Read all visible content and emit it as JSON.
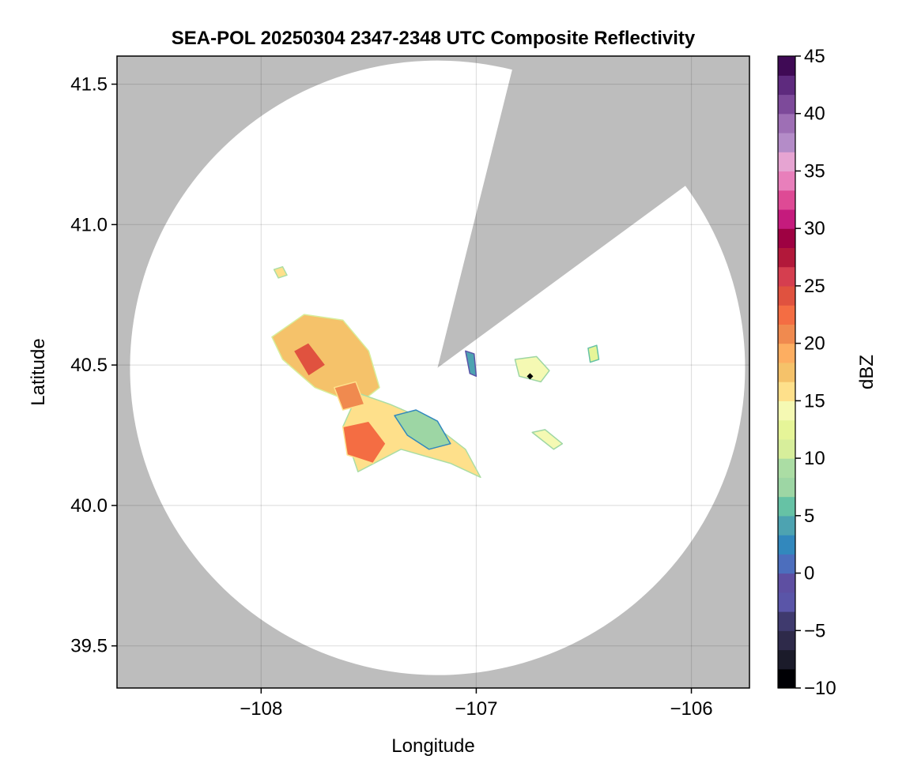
{
  "chart_data": {
    "type": "heatmap",
    "title": "SEA-POL 20250304 2347-2348 UTC Composite Reflectivity",
    "xlabel": "Longitude",
    "ylabel": "Latitude",
    "xlim": [
      -108.67,
      -105.73
    ],
    "ylim": [
      39.35,
      41.6
    ],
    "xticks": [
      -108,
      -107,
      -106
    ],
    "xtick_labels": [
      "−108",
      "−107",
      "−106"
    ],
    "yticks": [
      39.5,
      40.0,
      40.5,
      41.0,
      41.5
    ],
    "ytick_labels": [
      "39.5",
      "40.0",
      "40.5",
      "41.0",
      "41.5"
    ],
    "grid": true,
    "background_color": "#bdbdbd",
    "radar": {
      "center_lon": -107.18,
      "center_lat": 40.49,
      "blocked_sector_lon_lat": [
        [
          -106.84,
          41.53
        ],
        [
          -106.06,
          41.12
        ]
      ]
    },
    "colorbar": {
      "label": "dBZ",
      "min": -10,
      "max": 45,
      "ticks": [
        -10,
        -5,
        0,
        5,
        10,
        15,
        20,
        25,
        30,
        35,
        40,
        45
      ],
      "tick_labels": [
        "−10",
        "−5",
        "0",
        "5",
        "10",
        "15",
        "20",
        "25",
        "30",
        "35",
        "40",
        "45"
      ],
      "colors": [
        "#000004",
        "#1b1b2a",
        "#2e2a4a",
        "#3f3a6e",
        "#5a55a8",
        "#5e4fa2",
        "#4c6ebd",
        "#3288bd",
        "#4da3b1",
        "#66c2a5",
        "#9dd6a4",
        "#abdda4",
        "#d7ee9b",
        "#e6f598",
        "#f5f9b3",
        "#fee08b",
        "#f5c26a",
        "#fdae61",
        "#f08a4f",
        "#f46d43",
        "#e0523f",
        "#d53e4f",
        "#b2183a",
        "#9e0142",
        "#c51b7d",
        "#de4a95",
        "#e87fbb",
        "#e6a4d2",
        "#b48cc8",
        "#9e6fb5",
        "#7d4a9a",
        "#5e2a7e",
        "#3f0a55"
      ]
    },
    "echoes": [
      {
        "lon": [
          -107.95,
          -107.8,
          -107.62,
          -107.5,
          -107.45,
          -107.55,
          -107.75,
          -107.9
        ],
        "lat": [
          40.6,
          40.68,
          40.66,
          40.55,
          40.42,
          40.36,
          40.42,
          40.52
        ],
        "dbz": 17
      },
      {
        "lon": [
          -107.55,
          -107.4,
          -107.22,
          -107.05,
          -106.98,
          -107.12,
          -107.35,
          -107.55,
          -107.62
        ],
        "lat": [
          40.4,
          40.36,
          40.3,
          40.2,
          40.1,
          40.15,
          40.2,
          40.12,
          40.28
        ],
        "dbz": 15
      },
      {
        "lon": [
          -107.38,
          -107.28,
          -107.18,
          -107.12,
          -107.22,
          -107.32
        ],
        "lat": [
          40.32,
          40.34,
          40.3,
          40.22,
          40.2,
          40.25
        ],
        "dbz": 8
      },
      {
        "lon": [
          -107.62,
          -107.5,
          -107.42,
          -107.48,
          -107.6
        ],
        "lat": [
          40.28,
          40.3,
          40.22,
          40.15,
          40.18
        ],
        "dbz": 22
      },
      {
        "lon": [
          -107.85,
          -107.78,
          -107.7,
          -107.78
        ],
        "lat": [
          40.55,
          40.58,
          40.5,
          40.46
        ],
        "dbz": 24
      },
      {
        "lon": [
          -107.66,
          -107.56,
          -107.52,
          -107.62
        ],
        "lat": [
          40.42,
          40.44,
          40.36,
          40.34
        ],
        "dbz": 21
      },
      {
        "lon": [
          -106.82,
          -106.72,
          -106.66,
          -106.7,
          -106.8
        ],
        "lat": [
          40.52,
          40.53,
          40.48,
          40.44,
          40.46
        ],
        "dbz": 14
      },
      {
        "lon": [
          -107.05,
          -107.01,
          -107.0,
          -107.03
        ],
        "lat": [
          40.55,
          40.54,
          40.46,
          40.47
        ],
        "dbz": 4
      },
      {
        "lon": [
          -106.48,
          -106.44,
          -106.43,
          -106.47
        ],
        "lat": [
          40.56,
          40.57,
          40.52,
          40.51
        ],
        "dbz": 12
      },
      {
        "lon": [
          -106.74,
          -106.68,
          -106.6,
          -106.64
        ],
        "lat": [
          40.26,
          40.27,
          40.22,
          40.2
        ],
        "dbz": 14
      },
      {
        "lon": [
          -107.94,
          -107.9,
          -107.88,
          -107.92
        ],
        "lat": [
          40.84,
          40.85,
          40.82,
          40.81
        ],
        "dbz": 15
      }
    ],
    "marker": {
      "lon": -106.75,
      "lat": 40.46
    }
  }
}
